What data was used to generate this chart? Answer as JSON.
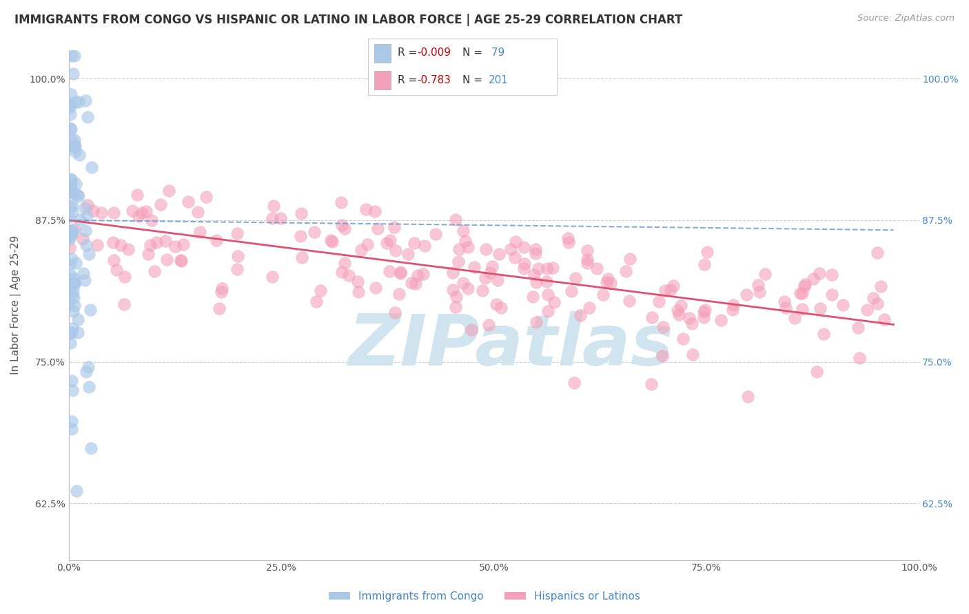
{
  "title": "IMMIGRANTS FROM CONGO VS HISPANIC OR LATINO IN LABOR FORCE | AGE 25-29 CORRELATION CHART",
  "source": "Source: ZipAtlas.com",
  "ylabel": "In Labor Force | Age 25-29",
  "xlim": [
    0.0,
    1.0
  ],
  "ylim": [
    0.575,
    1.025
  ],
  "yticks": [
    0.625,
    0.75,
    0.875,
    1.0
  ],
  "ytick_labels": [
    "62.5%",
    "75.0%",
    "87.5%",
    "100.0%"
  ],
  "xticks": [
    0.0,
    0.25,
    0.5,
    0.75,
    1.0
  ],
  "xtick_labels": [
    "0.0%",
    "25.0%",
    "50.0%",
    "75.0%",
    "100.0%"
  ],
  "congo_R": -0.009,
  "congo_N": 79,
  "hispanic_R": -0.783,
  "hispanic_N": 201,
  "congo_color": "#aac8e8",
  "hispanic_color": "#f4a0b8",
  "congo_line_color": "#6699cc",
  "hispanic_line_color": "#e05070",
  "legend_label_congo": "Immigrants from Congo",
  "legend_label_hispanic": "Hispanics or Latinos",
  "watermark_text": "ZIPatlas",
  "watermark_color": "#d0e4f0",
  "background_color": "#ffffff",
  "grid_color": "#cccccc",
  "title_color": "#333333",
  "axis_label_color": "#555555",
  "tick_color": "#555555",
  "right_tick_color": "#4488cc",
  "legend_R_color": "#cc0000",
  "legend_value_color": "#4488cc",
  "legend_label_color": "#4488cc",
  "source_color": "#999999",
  "congo_intercept": 0.875,
  "congo_slope": -0.009,
  "hispanic_intercept": 0.875,
  "hispanic_slope": -0.095
}
